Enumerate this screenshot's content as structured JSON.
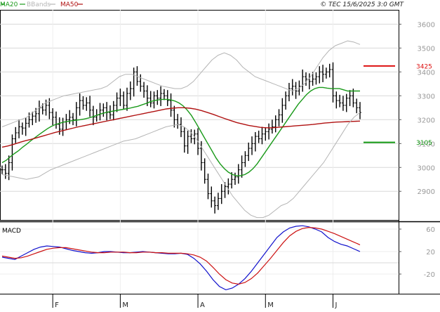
{
  "header": {
    "legend": [
      {
        "label": "MA20",
        "color": "#1a9a1a"
      },
      {
        "label": "BBands",
        "color": "#b5b5b5"
      },
      {
        "label": "MA50",
        "color": "#b01010"
      }
    ],
    "copyright": "© TEC 15/6/2025 3:0 GMT"
  },
  "chart_data": [
    {
      "type": "line",
      "panel": "price",
      "ylim": [
        2780,
        3660
      ],
      "y_ticks": [
        2900,
        3000,
        3100,
        3200,
        3300,
        3400,
        3500,
        3600
      ],
      "x_tick_labels": [
        {
          "label": "F",
          "index": 15
        },
        {
          "label": "M",
          "index": 35
        },
        {
          "label": "A",
          "index": 58
        },
        {
          "label": "M",
          "index": 78
        },
        {
          "label": "J",
          "index": 98
        }
      ],
      "ohlc_close": [
        2990,
        2975,
        3020,
        3120,
        3145,
        3170,
        3165,
        3185,
        3200,
        3215,
        3225,
        3250,
        3240,
        3260,
        3230,
        3210,
        3180,
        3160,
        3190,
        3200,
        3210,
        3200,
        3250,
        3280,
        3260,
        3270,
        3240,
        3210,
        3220,
        3240,
        3250,
        3230,
        3220,
        3260,
        3290,
        3300,
        3260,
        3310,
        3330,
        3400,
        3360,
        3340,
        3320,
        3290,
        3270,
        3300,
        3290,
        3310,
        3300,
        3280,
        3240,
        3200,
        3180,
        3150,
        3090,
        3130,
        3120,
        3140,
        3080,
        3020,
        2950,
        2890,
        2860,
        2840,
        2870,
        2900,
        2920,
        2930,
        2950,
        2960,
        2990,
        3020,
        3050,
        3080,
        3100,
        3130,
        3120,
        3140,
        3150,
        3160,
        3170,
        3200,
        3220,
        3260,
        3300,
        3330,
        3340,
        3320,
        3340,
        3380,
        3370,
        3360,
        3370,
        3380,
        3400,
        3390,
        3400,
        3410,
        3300,
        3280,
        3270,
        3260,
        3290,
        3300,
        3270,
        3250,
        3230
      ],
      "series": [
        {
          "name": "MA20",
          "color": "#1a9a1a",
          "values": [
            3020,
            3030,
            3045,
            3058,
            3070,
            3085,
            3098,
            3112,
            3125,
            3138,
            3150,
            3162,
            3172,
            3180,
            3185,
            3190,
            3193,
            3196,
            3198,
            3200,
            3203,
            3207,
            3212,
            3218,
            3224,
            3229,
            3233,
            3236,
            3239,
            3242,
            3245,
            3248,
            3252,
            3256,
            3262,
            3268,
            3275,
            3280,
            3283,
            3285,
            3285,
            3283,
            3278,
            3270,
            3258,
            3240,
            3218,
            3190,
            3160,
            3130,
            3100,
            3070,
            3040,
            3015,
            2995,
            2980,
            2970,
            2965,
            2965,
            2970,
            2980,
            2995,
            3015,
            3040,
            3065,
            3090,
            3115,
            3140,
            3165,
            3190,
            3215,
            3240,
            3265,
            3285,
            3305,
            3320,
            3330,
            3335,
            3335,
            3332,
            3330,
            3330,
            3330,
            3325,
            3320,
            3320,
            3320,
            3320
          ]
        },
        {
          "name": "MA50",
          "color": "#b01010",
          "values": [
            3085,
            3090,
            3097,
            3105,
            3112,
            3118,
            3125,
            3132,
            3139,
            3146,
            3152,
            3158,
            3164,
            3170,
            3175,
            3180,
            3185,
            3190,
            3195,
            3200,
            3205,
            3210,
            3215,
            3220,
            3225,
            3230,
            3235,
            3240,
            3245,
            3248,
            3250,
            3250,
            3248,
            3244,
            3238,
            3230,
            3222,
            3213,
            3204,
            3196,
            3188,
            3182,
            3176,
            3172,
            3168,
            3166,
            3166,
            3168,
            3170,
            3172,
            3174,
            3176,
            3178,
            3180,
            3183,
            3186,
            3188,
            3190,
            3191,
            3192,
            3193,
            3194
          ]
        },
        {
          "name": "BB_upper",
          "color": "#b5b5b5",
          "values": [
            3170,
            3180,
            3190,
            3200,
            3210,
            3230,
            3250,
            3270,
            3280,
            3290,
            3300,
            3305,
            3310,
            3315,
            3320,
            3325,
            3330,
            3340,
            3360,
            3380,
            3390,
            3390,
            3380,
            3370,
            3360,
            3350,
            3340,
            3335,
            3330,
            3330,
            3340,
            3360,
            3390,
            3420,
            3450,
            3470,
            3480,
            3470,
            3450,
            3420,
            3400,
            3380,
            3370,
            3360,
            3350,
            3340,
            3330,
            3320,
            3330,
            3350,
            3380,
            3420,
            3460,
            3490,
            3510,
            3520,
            3530,
            3525,
            3515
          ]
        },
        {
          "name": "BB_lower",
          "color": "#b5b5b5",
          "values": [
            2970,
            2965,
            2960,
            2955,
            2950,
            2955,
            2960,
            2975,
            2990,
            3000,
            3010,
            3020,
            3030,
            3040,
            3050,
            3060,
            3070,
            3080,
            3090,
            3100,
            3110,
            3115,
            3120,
            3130,
            3140,
            3150,
            3160,
            3170,
            3175,
            3180,
            3170,
            3150,
            3120,
            3080,
            3040,
            3000,
            2960,
            2920,
            2880,
            2850,
            2820,
            2800,
            2790,
            2790,
            2800,
            2820,
            2840,
            2850,
            2870,
            2900,
            2930,
            2960,
            2990,
            3020,
            3060,
            3100,
            3140,
            3180,
            3210,
            3230
          ]
        },
        {
          "name": "Resistance",
          "color": "#dd1111",
          "values": [
            3425
          ],
          "label": "3425"
        },
        {
          "name": "Support",
          "color": "#119911",
          "values": [
            3105
          ],
          "label": "3105"
        }
      ]
    },
    {
      "type": "line",
      "panel": "macd",
      "title": "MACD",
      "ylim": [
        -55,
        70
      ],
      "y_ticks": [
        {
          "value": 60,
          "label": "60"
        },
        {
          "value": 20,
          "label": "20"
        },
        {
          "value": -20,
          "label": "-20"
        }
      ],
      "series": [
        {
          "name": "MACD",
          "color": "#1111cc",
          "values": [
            10,
            8,
            6,
            12,
            18,
            24,
            28,
            30,
            29,
            28,
            25,
            22,
            20,
            18,
            17,
            18,
            20,
            20,
            19,
            18,
            18,
            19,
            20,
            19,
            18,
            17,
            16,
            16,
            17,
            15,
            8,
            -2,
            -15,
            -30,
            -42,
            -48,
            -45,
            -38,
            -28,
            -15,
            0,
            15,
            30,
            45,
            55,
            62,
            65,
            66,
            64,
            60,
            55,
            45,
            38,
            33,
            30,
            25,
            20
          ]
        },
        {
          "name": "Signal",
          "color": "#cc1111",
          "values": [
            12,
            10,
            8,
            9,
            12,
            16,
            20,
            24,
            26,
            27,
            27,
            25,
            23,
            21,
            19,
            18,
            18,
            19,
            19,
            19,
            18,
            18,
            19,
            19,
            18,
            18,
            17,
            17,
            17,
            16,
            14,
            10,
            3,
            -8,
            -20,
            -30,
            -36,
            -38,
            -35,
            -28,
            -18,
            -5,
            8,
            22,
            36,
            48,
            56,
            61,
            63,
            62,
            60,
            56,
            52,
            47,
            42,
            37,
            32
          ]
        }
      ]
    }
  ]
}
